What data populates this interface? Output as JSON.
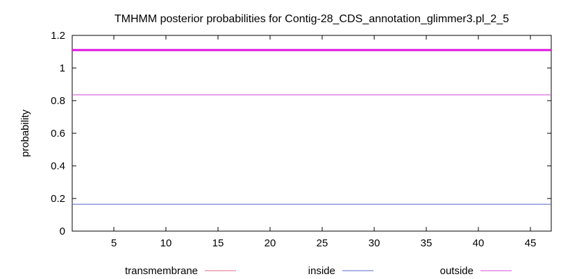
{
  "chart_data": {
    "type": "line",
    "title": "TMHMM posterior probabilities for Contig-28_CDS_annotation_glimmer3.pl_2_5",
    "xlabel": "",
    "ylabel": "probability",
    "xlim": [
      1,
      47
    ],
    "ylim": [
      0,
      1.2
    ],
    "x_ticks": [
      5,
      10,
      15,
      20,
      25,
      30,
      35,
      40,
      45
    ],
    "y_ticks": [
      0,
      0.2,
      0.4,
      0.6,
      0.8,
      1,
      1.2
    ],
    "y_tick_labels": [
      "0",
      "0.2",
      "0.4",
      "0.6",
      "0.8",
      "1",
      "1.2"
    ],
    "grid": false,
    "legend_position": "bottom",
    "series": [
      {
        "name": "transmembrane",
        "color": "#e06a8a",
        "x": [
          1,
          47
        ],
        "values": [
          1.11,
          1.11
        ]
      },
      {
        "name": "inside",
        "color": "#5a64c8",
        "x": [
          1,
          47
        ],
        "values": [
          0.165,
          0.165
        ]
      },
      {
        "name": "outside",
        "color": "#d44ad4",
        "x": [
          1,
          47
        ],
        "values": [
          0.835,
          0.835
        ]
      }
    ],
    "reference_line": {
      "color": "#e010e0",
      "value": 1.11
    }
  }
}
